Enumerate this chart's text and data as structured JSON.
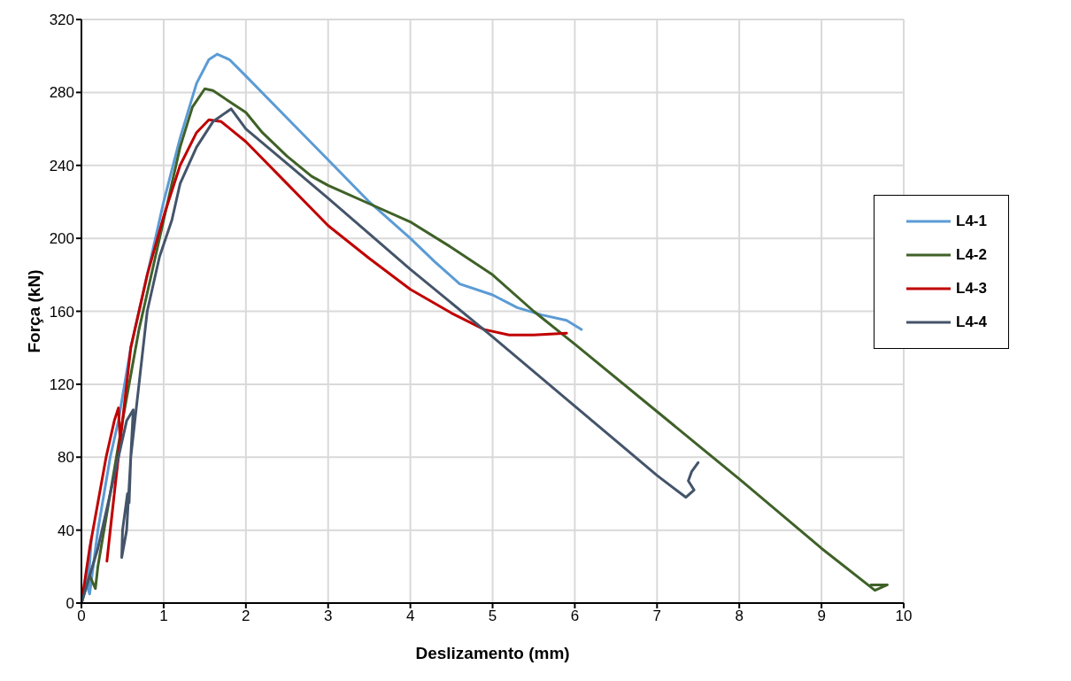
{
  "chart_data": {
    "type": "line",
    "xlabel": "Deslizamento (mm)",
    "ylabel": "Força (kN)",
    "xlim": [
      0,
      10
    ],
    "xticks": [
      0,
      1,
      2,
      3,
      4,
      5,
      6,
      7,
      8,
      9,
      10
    ],
    "ylim": [
      0,
      320
    ],
    "yticks": [
      0,
      40,
      80,
      120,
      160,
      200,
      240,
      280,
      320
    ],
    "grid": true,
    "legend": "right",
    "marker": "none",
    "line_style": "solid",
    "series": [
      {
        "name": "L4-1",
        "color": "#5b9bd5",
        "x": [
          0,
          0.05,
          0.12,
          0.08,
          0.1,
          0.2,
          0.35,
          0.45,
          0.6,
          0.8,
          1.0,
          1.2,
          1.4,
          1.55,
          1.65,
          1.8,
          2,
          2.5,
          3,
          3.5,
          4,
          4.3,
          4.6,
          5,
          5.3,
          5.6,
          5.9,
          6.08
        ],
        "values": [
          0,
          10,
          35,
          8,
          5,
          40,
          80,
          100,
          140,
          180,
          220,
          255,
          285,
          298,
          301,
          298,
          289,
          266,
          243,
          220,
          200,
          187,
          175,
          169,
          162,
          158,
          155,
          150
        ]
      },
      {
        "name": "L4-2",
        "color": "#3f6128",
        "x": [
          0,
          0.1,
          0.17,
          0.2,
          0.35,
          0.5,
          0.7,
          0.9,
          1.0,
          1.2,
          1.35,
          1.5,
          1.6,
          1.8,
          2,
          2.2,
          2.5,
          2.8,
          3,
          3.2,
          3.5,
          4,
          4.5,
          5,
          5.5,
          6,
          7,
          8,
          9,
          9.65,
          9.8,
          9.6
        ],
        "values": [
          0,
          15,
          8,
          20,
          60,
          100,
          150,
          190,
          210,
          250,
          272,
          282,
          281,
          275,
          269,
          258,
          245,
          234,
          229,
          225,
          219,
          209,
          195,
          180,
          160,
          142,
          105,
          68,
          30,
          7,
          10,
          10
        ]
      },
      {
        "name": "L4-3",
        "color": "#c00000",
        "x": [
          0,
          0.1,
          0.3,
          0.4,
          0.45,
          0.47,
          0.4,
          0.31,
          0.35,
          0.5,
          0.6,
          0.8,
          1,
          1.2,
          1.4,
          1.55,
          1.7,
          2,
          2.5,
          3,
          3.5,
          4,
          4.5,
          4.9,
          5.2,
          5.5,
          5.9
        ],
        "values": [
          0,
          30,
          80,
          100,
          107,
          90,
          60,
          23,
          40,
          100,
          140,
          180,
          212,
          240,
          258,
          265,
          264,
          253,
          230,
          207,
          189,
          172,
          159,
          150,
          147,
          147,
          148
        ]
      },
      {
        "name": "L4-4",
        "color": "#44546a",
        "x": [
          0,
          0.2,
          0.4,
          0.55,
          0.63,
          0.6,
          0.55,
          0.49,
          0.5,
          0.56,
          0.58,
          0.6,
          0.7,
          0.8,
          0.95,
          1.1,
          1.2,
          1.4,
          1.6,
          1.82,
          2,
          2.5,
          3,
          4,
          5,
          6,
          7,
          7.35,
          7.45,
          7.38,
          7.42,
          7.5
        ],
        "values": [
          0,
          30,
          70,
          100,
          106,
          80,
          40,
          25,
          40,
          60,
          55,
          80,
          120,
          160,
          190,
          210,
          230,
          250,
          264,
          271,
          260,
          241,
          222,
          183,
          146,
          108,
          70,
          58,
          62,
          67,
          72,
          77
        ]
      }
    ]
  }
}
